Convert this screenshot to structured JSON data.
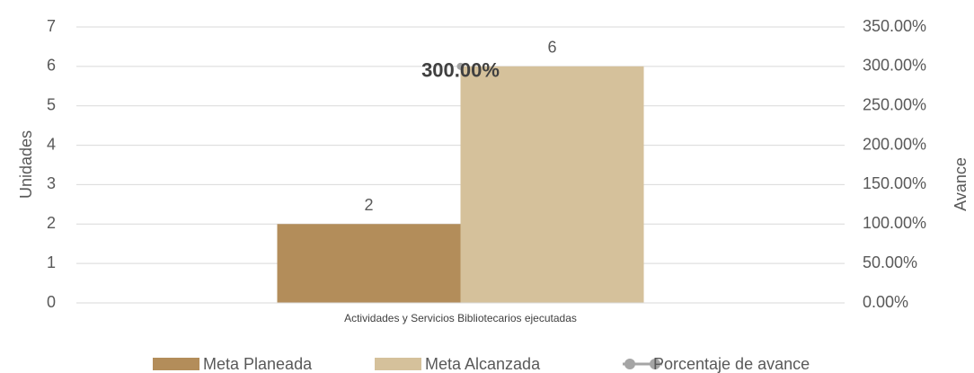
{
  "chart_data": {
    "type": "bar",
    "categories": [
      "Actividades y Servicios Bibliotecarios ejecutadas"
    ],
    "series": [
      {
        "name": "Meta Planeada",
        "color": "#b38d5a",
        "values": [
          2
        ]
      },
      {
        "name": "Meta Alcanzada",
        "color": "#d5c19b",
        "values": [
          6
        ]
      },
      {
        "name": "Porcentaje de avance",
        "color": "#a5a5a5",
        "values": [
          300
        ],
        "value_labels": [
          "300.00%"
        ],
        "axis": "y2",
        "type": "line"
      }
    ],
    "ylabel": "Unidades",
    "y2label": "Avance",
    "ylim": [
      0,
      7
    ],
    "yticks": [
      0,
      1,
      2,
      3,
      4,
      5,
      6,
      7
    ],
    "y2lim": [
      0,
      350
    ],
    "y2ticks": [
      {
        "value": 0,
        "label": "0.00%"
      },
      {
        "value": 50,
        "label": "50.00%"
      },
      {
        "value": 100,
        "label": "100.00%"
      },
      {
        "value": 150,
        "label": "150.00%"
      },
      {
        "value": 200,
        "label": "200.00%"
      },
      {
        "value": 250,
        "label": "250.00%"
      },
      {
        "value": 300,
        "label": "300.00%"
      },
      {
        "value": 350,
        "label": "350.00%"
      }
    ],
    "grid": true,
    "legend": "bottom"
  }
}
